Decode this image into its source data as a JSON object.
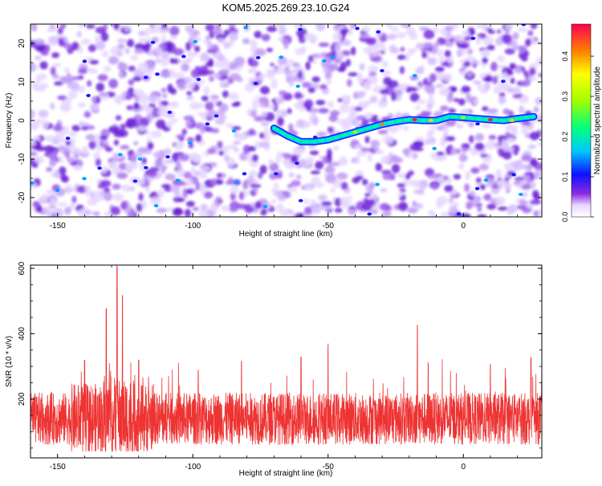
{
  "title": "KOM5.2025.269.23.10.G24",
  "chart_data": [
    {
      "type": "heatmap",
      "xlabel": "Height of straight line (km)",
      "ylabel": "Frequency (Hz)",
      "xlim": [
        -160,
        29
      ],
      "ylim": [
        -25,
        25
      ],
      "xticks": [
        -150,
        -100,
        -50,
        0
      ],
      "yticks": [
        -20,
        -10,
        0,
        10,
        20
      ],
      "colorbar": {
        "label": "Normalized spectral amplitude",
        "range": [
          0,
          0.48
        ],
        "ticks": [
          "0.0",
          "0.1",
          "0.2",
          "0.3",
          "0.4"
        ],
        "colormap": "rainbow"
      },
      "trace": {
        "description": "Doppler signal trace",
        "points": [
          [
            -70,
            -2
          ],
          [
            -65,
            -4
          ],
          [
            -60,
            -5.5
          ],
          [
            -55,
            -5.5
          ],
          [
            -50,
            -5
          ],
          [
            -45,
            -4
          ],
          [
            -40,
            -3
          ],
          [
            -35,
            -2
          ],
          [
            -30,
            -1
          ],
          [
            -25,
            -0.3
          ],
          [
            -20,
            0.2
          ],
          [
            -15,
            0
          ],
          [
            -10,
            0
          ],
          [
            -5,
            1
          ],
          [
            0,
            0.8
          ],
          [
            5,
            0.5
          ],
          [
            10,
            0.2
          ],
          [
            15,
            0
          ],
          [
            20,
            0.5
          ],
          [
            26,
            1
          ]
        ]
      }
    },
    {
      "type": "line",
      "xlabel": "Height of straight line (km)",
      "ylabel": "SNR (10 * v/v)",
      "xlim": [
        -160,
        29
      ],
      "ylim": [
        20,
        610
      ],
      "xticks": [
        -150,
        -100,
        -50,
        0
      ],
      "yticks": [
        200,
        400,
        600
      ],
      "series": [
        {
          "color": "#ee3333",
          "summary": {
            "baseline_mean": 140,
            "noise_range": [
              60,
              260
            ]
          },
          "peaks": [
            [
              -140,
              330
            ],
            [
              -132,
              480
            ],
            [
              -128,
              610
            ],
            [
              -126,
              520
            ],
            [
              -120,
              330
            ],
            [
              -98,
              290
            ],
            [
              -82,
              320
            ],
            [
              -60,
              340
            ],
            [
              -50,
              370
            ],
            [
              -17,
              430
            ],
            [
              -13,
              320
            ],
            [
              10,
              310
            ],
            [
              25,
              330
            ]
          ]
        }
      ]
    }
  ]
}
